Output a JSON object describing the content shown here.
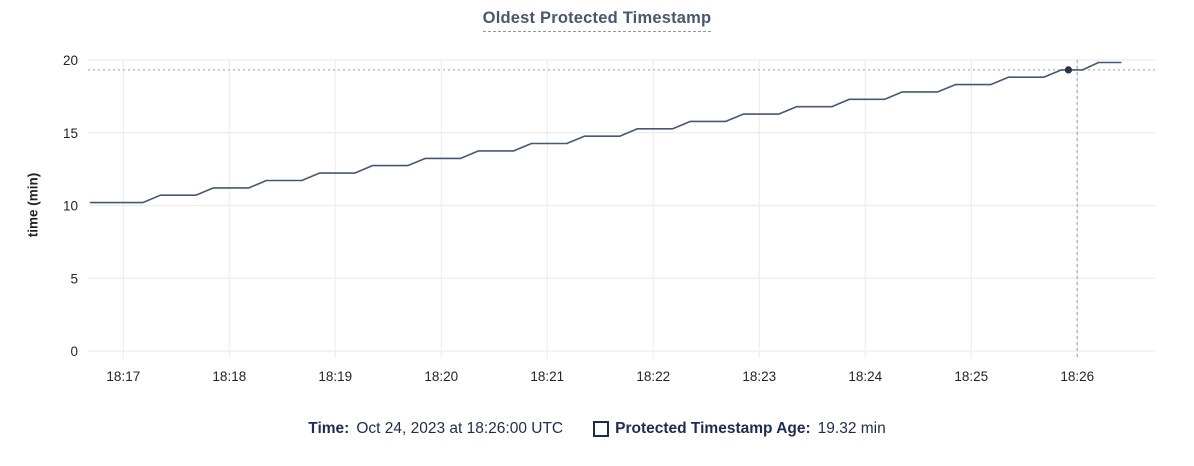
{
  "title": "Oldest Protected Timestamp",
  "y_axis_title": "time (min)",
  "footer": {
    "time_label": "Time:",
    "time_value": "Oct 24, 2023 at 18:26:00 UTC",
    "series_label": "Protected Timestamp Age:",
    "series_value": "19.32 min"
  },
  "colors": {
    "title": "#475872",
    "series_line": "#475872",
    "hover_dot": "#26334f",
    "crosshair": "#a5b6c2",
    "gridline_h": "#ececec",
    "gridline_v": "#efefef",
    "tick_text": "#242424",
    "legend_text": "#1d2c52"
  },
  "chart_data": {
    "type": "line",
    "title": "Oldest Protected Timestamp",
    "xlabel": "",
    "ylabel": "time (min)",
    "ylim": [
      0,
      20
    ],
    "y_ticks": [
      0,
      5,
      10,
      15,
      20
    ],
    "x_start_time": "18:16:40",
    "x_range_seconds": [
      0,
      604
    ],
    "x_ticks": [
      {
        "t": 20,
        "label": "18:17"
      },
      {
        "t": 80,
        "label": "18:18"
      },
      {
        "t": 140,
        "label": "18:19"
      },
      {
        "t": 200,
        "label": "18:20"
      },
      {
        "t": 260,
        "label": "18:21"
      },
      {
        "t": 320,
        "label": "18:22"
      },
      {
        "t": 380,
        "label": "18:23"
      },
      {
        "t": 440,
        "label": "18:24"
      },
      {
        "t": 500,
        "label": "18:25"
      },
      {
        "t": 560,
        "label": "18:26"
      }
    ],
    "grid": true,
    "legend_position": "bottom",
    "series": [
      {
        "name": "Protected Timestamp Age",
        "unit": "min",
        "points": [
          [
            1,
            10.2
          ],
          [
            31,
            10.2
          ],
          [
            41,
            10.71
          ],
          [
            61,
            10.71
          ],
          [
            71,
            11.21
          ],
          [
            91,
            11.21
          ],
          [
            101,
            11.72
          ],
          [
            121,
            11.72
          ],
          [
            131,
            12.23
          ],
          [
            151,
            12.23
          ],
          [
            161,
            12.74
          ],
          [
            181,
            12.74
          ],
          [
            191,
            13.24
          ],
          [
            211,
            13.24
          ],
          [
            221,
            13.75
          ],
          [
            241,
            13.75
          ],
          [
            251,
            14.26
          ],
          [
            271,
            14.26
          ],
          [
            281,
            14.76
          ],
          [
            301,
            14.76
          ],
          [
            311,
            15.27
          ],
          [
            331,
            15.27
          ],
          [
            341,
            15.78
          ],
          [
            361,
            15.78
          ],
          [
            371,
            16.28
          ],
          [
            391,
            16.28
          ],
          [
            401,
            16.79
          ],
          [
            421,
            16.79
          ],
          [
            431,
            17.3
          ],
          [
            451,
            17.3
          ],
          [
            461,
            17.81
          ],
          [
            481,
            17.81
          ],
          [
            491,
            18.31
          ],
          [
            511,
            18.31
          ],
          [
            521,
            18.82
          ],
          [
            541,
            18.82
          ],
          [
            551,
            19.32
          ],
          [
            563,
            19.32
          ],
          [
            572,
            19.83
          ],
          [
            585,
            19.83
          ]
        ]
      }
    ],
    "hover_point": {
      "t": 555,
      "v": 19.32
    },
    "crosshair": {
      "t": 560,
      "v": 19.32,
      "time_label": "Oct 24, 2023 at 18:26:00 UTC",
      "value_label": "19.32 min"
    }
  }
}
